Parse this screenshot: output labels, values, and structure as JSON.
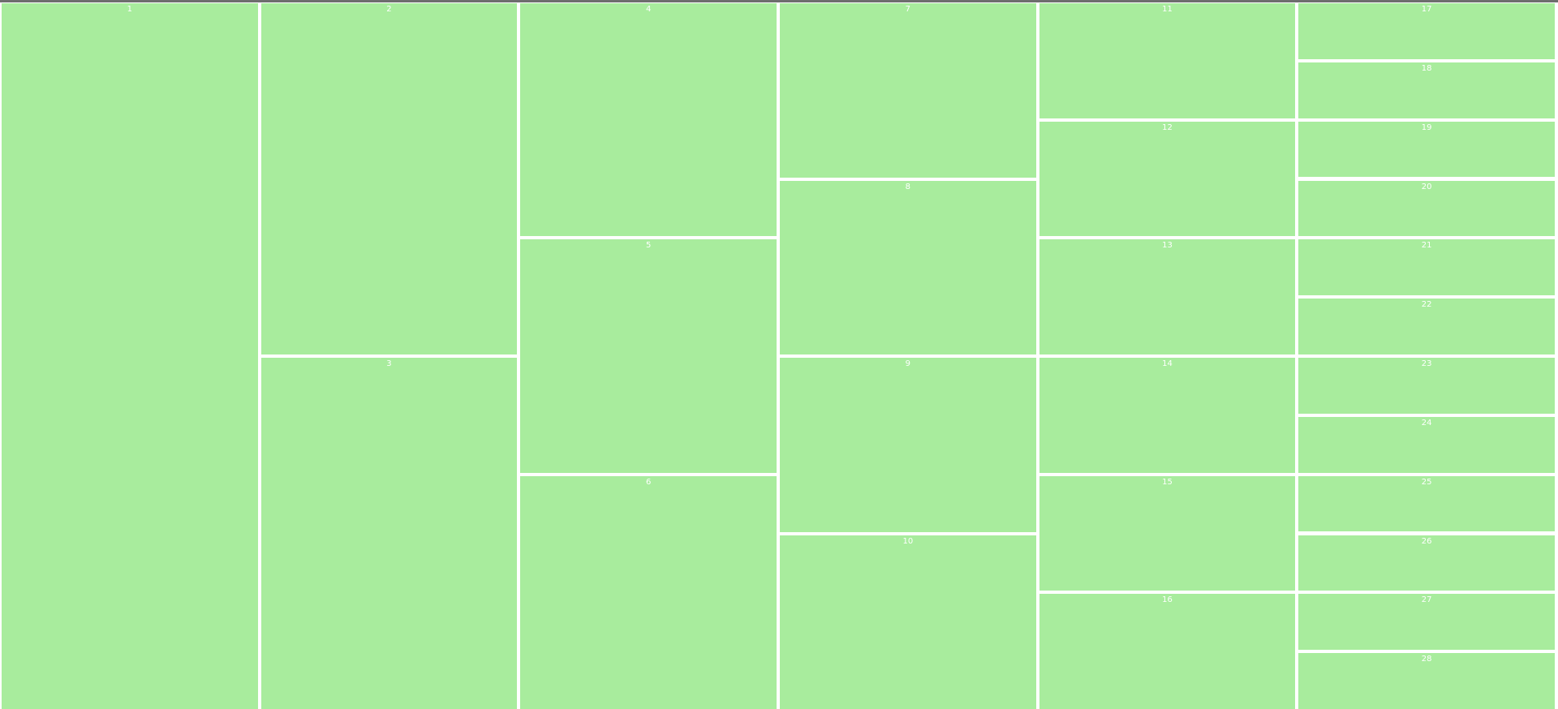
{
  "columns": [
    [
      "1"
    ],
    [
      "2",
      "3"
    ],
    [
      "4",
      "5",
      "6"
    ],
    [
      "7",
      "8",
      "9",
      "10"
    ],
    [
      "11",
      "12",
      "13",
      "14",
      "15",
      "16"
    ],
    [
      "17",
      "18",
      "19",
      "20",
      "21",
      "22",
      "23",
      "24",
      "25",
      "26",
      "27",
      "28"
    ]
  ]
}
